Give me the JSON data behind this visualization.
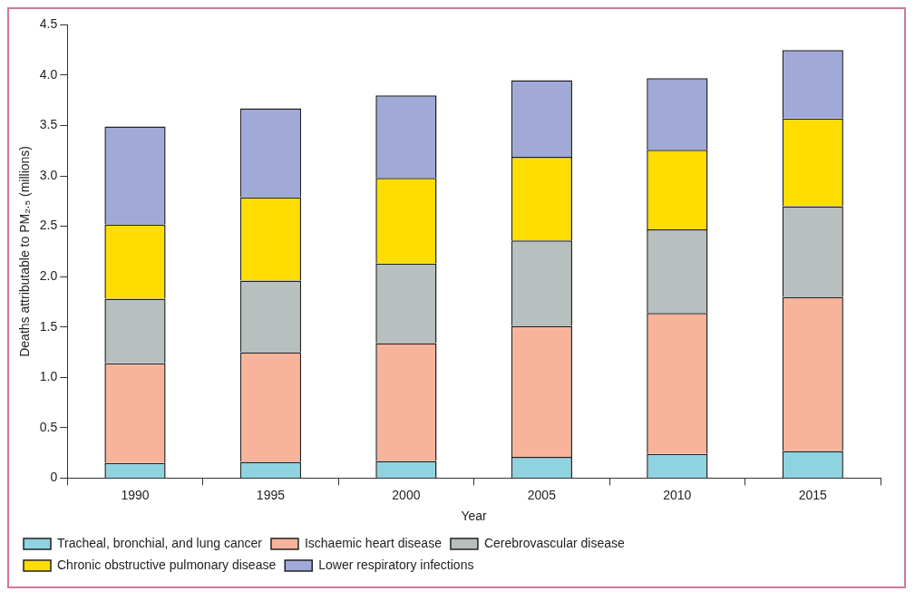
{
  "chart_data": {
    "type": "bar",
    "stacked": true,
    "xlabel": "Year",
    "ylabel": "Deaths attributable to PM₂.₅ (millions)",
    "categories": [
      "1990",
      "1995",
      "2000",
      "2005",
      "2010",
      "2015"
    ],
    "series": [
      {
        "name": "Tracheal, bronchial, and lung cancer",
        "color": "#8fd3e0",
        "values": [
          0.15,
          0.16,
          0.17,
          0.21,
          0.24,
          0.27
        ]
      },
      {
        "name": "Ischaemic heart disease",
        "color": "#f7b49a",
        "values": [
          0.99,
          1.09,
          1.17,
          1.3,
          1.4,
          1.53
        ]
      },
      {
        "name": "Cerebrovascular disease",
        "color": "#b7bfbf",
        "values": [
          0.64,
          0.71,
          0.79,
          0.85,
          0.83,
          0.9
        ]
      },
      {
        "name": "Chronic obstructive pulmonary disease",
        "color": "#ffdd00",
        "values": [
          0.74,
          0.83,
          0.85,
          0.83,
          0.79,
          0.87
        ]
      },
      {
        "name": "Lower respiratory infections",
        "color": "#a0a9d8",
        "values": [
          0.97,
          0.88,
          0.82,
          0.76,
          0.71,
          0.68
        ]
      }
    ],
    "ylim": [
      0,
      4.5
    ],
    "yticks": [
      0,
      0.5,
      {
        "value": 1,
        "label": "1.0"
      },
      1.5,
      {
        "value": 2,
        "label": "2.0"
      },
      2.5,
      {
        "value": 3,
        "label": "3.0"
      },
      3.5,
      {
        "value": 4,
        "label": "4.0"
      },
      4.5
    ],
    "grid": false,
    "legend": "bottom"
  }
}
